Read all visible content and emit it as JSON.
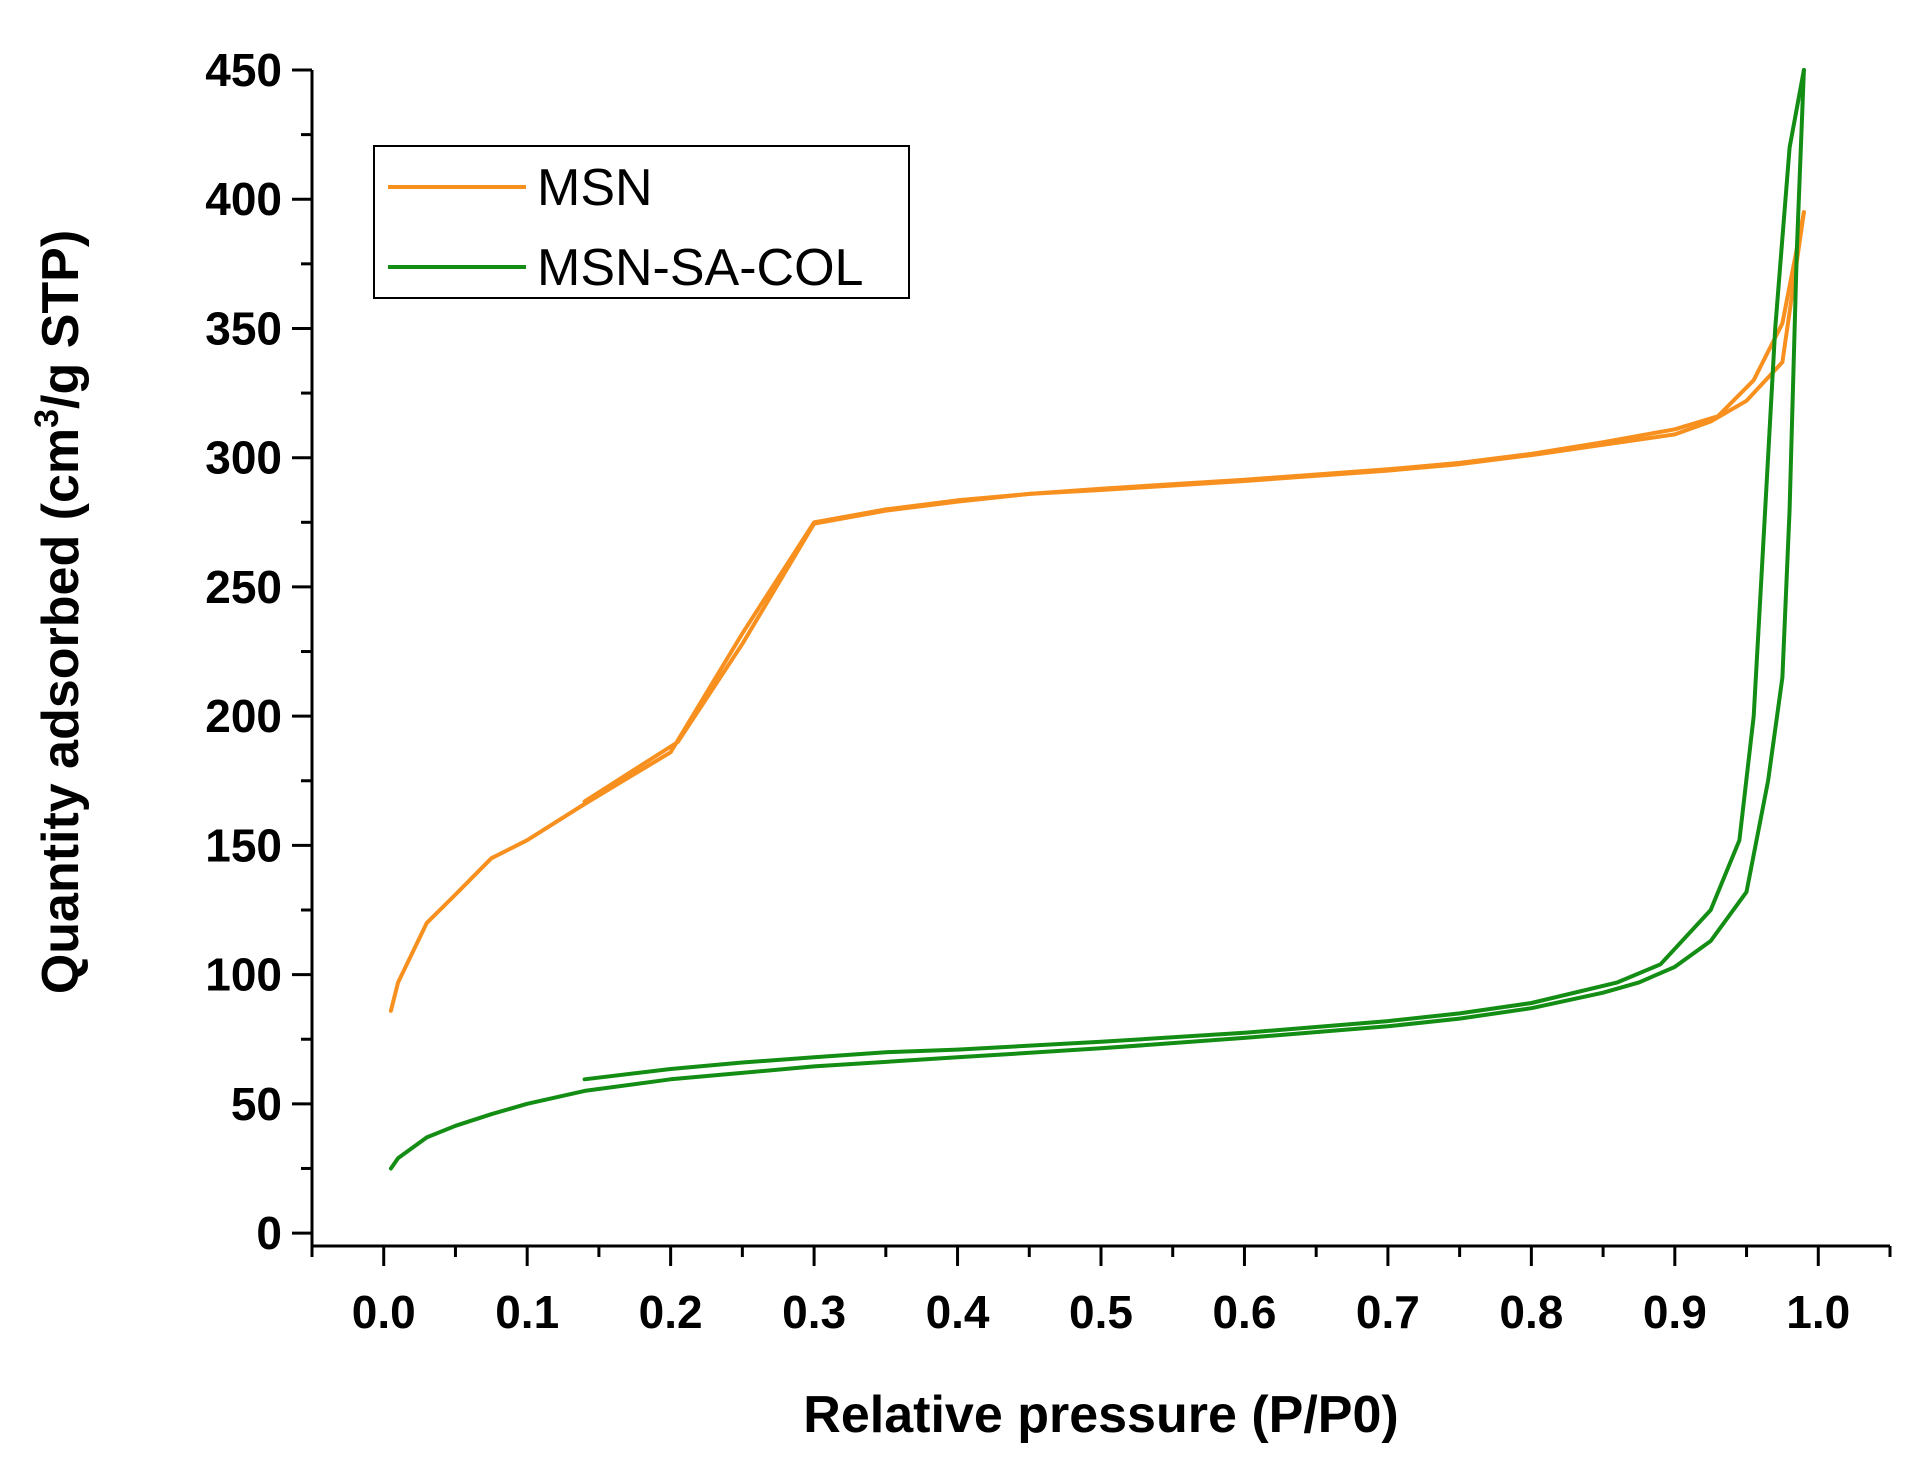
{
  "chart_data": {
    "type": "line",
    "title": "",
    "xlabel": "Relative pressure (P/P0)",
    "ylabel": {
      "prefix": "Quantity adsorbed (cm",
      "sup": "3",
      "suffix": "/g STP)"
    },
    "xlim": [
      -0.05,
      1.05
    ],
    "ylim": [
      -5,
      450
    ],
    "xticks": [
      "0.0",
      "0.1",
      "0.2",
      "0.3",
      "0.4",
      "0.5",
      "0.6",
      "0.7",
      "0.8",
      "0.9",
      "1.0"
    ],
    "yticks": [
      "0",
      "50",
      "100",
      "150",
      "200",
      "250",
      "300",
      "350",
      "400",
      "450"
    ],
    "legend_position": "top-left",
    "grid": false,
    "series": [
      {
        "name": "MSN",
        "color": "#F7901E",
        "adsorption": [
          [
            0.005,
            86
          ],
          [
            0.01,
            97
          ],
          [
            0.03,
            120
          ],
          [
            0.05,
            131
          ],
          [
            0.075,
            145
          ],
          [
            0.1,
            152
          ],
          [
            0.14,
            166
          ],
          [
            0.2,
            186
          ],
          [
            0.25,
            232
          ],
          [
            0.3,
            275
          ],
          [
            0.35,
            280
          ],
          [
            0.4,
            283.5
          ],
          [
            0.45,
            286
          ],
          [
            0.5,
            288
          ],
          [
            0.6,
            291.5
          ],
          [
            0.7,
            295.5
          ],
          [
            0.75,
            298
          ],
          [
            0.8,
            301.5
          ],
          [
            0.85,
            306
          ],
          [
            0.9,
            311
          ],
          [
            0.93,
            316
          ],
          [
            0.955,
            330
          ],
          [
            0.975,
            352
          ],
          [
            0.99,
            395
          ]
        ],
        "desorption": [
          [
            0.99,
            395
          ],
          [
            0.975,
            337
          ],
          [
            0.95,
            322
          ],
          [
            0.925,
            314
          ],
          [
            0.9,
            309
          ],
          [
            0.85,
            305
          ],
          [
            0.8,
            301
          ],
          [
            0.75,
            297.5
          ],
          [
            0.7,
            295
          ],
          [
            0.6,
            291
          ],
          [
            0.5,
            287.5
          ],
          [
            0.45,
            286
          ],
          [
            0.4,
            283
          ],
          [
            0.35,
            279.5
          ],
          [
            0.3,
            274.5
          ],
          [
            0.25,
            228
          ],
          [
            0.205,
            190
          ],
          [
            0.14,
            167
          ]
        ]
      },
      {
        "name": "MSN-SA-COL",
        "color": "#138D13",
        "adsorption": [
          [
            0.005,
            25
          ],
          [
            0.01,
            29
          ],
          [
            0.03,
            37
          ],
          [
            0.05,
            41.5
          ],
          [
            0.075,
            46
          ],
          [
            0.1,
            50
          ],
          [
            0.14,
            55
          ],
          [
            0.2,
            59.5
          ],
          [
            0.3,
            64.5
          ],
          [
            0.4,
            68
          ],
          [
            0.5,
            71.5
          ],
          [
            0.6,
            75.5
          ],
          [
            0.7,
            80
          ],
          [
            0.75,
            83
          ],
          [
            0.8,
            87
          ],
          [
            0.85,
            93
          ],
          [
            0.875,
            97
          ],
          [
            0.9,
            103
          ],
          [
            0.925,
            113
          ],
          [
            0.95,
            132
          ],
          [
            0.965,
            175
          ],
          [
            0.975,
            215
          ],
          [
            0.98,
            280
          ],
          [
            0.985,
            380
          ],
          [
            0.99,
            450
          ]
        ],
        "desorption": [
          [
            0.99,
            450
          ],
          [
            0.98,
            420
          ],
          [
            0.97,
            350
          ],
          [
            0.96,
            250
          ],
          [
            0.955,
            200
          ],
          [
            0.945,
            152
          ],
          [
            0.925,
            125
          ],
          [
            0.89,
            104
          ],
          [
            0.86,
            97
          ],
          [
            0.8,
            89
          ],
          [
            0.75,
            85
          ],
          [
            0.7,
            82
          ],
          [
            0.6,
            77.5
          ],
          [
            0.5,
            74
          ],
          [
            0.4,
            71
          ],
          [
            0.35,
            70
          ],
          [
            0.3,
            68
          ],
          [
            0.25,
            66
          ],
          [
            0.2,
            63.5
          ],
          [
            0.14,
            59.5
          ]
        ]
      }
    ]
  }
}
